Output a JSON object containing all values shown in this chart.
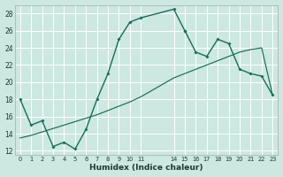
{
  "xlabel": "Humidex (Indice chaleur)",
  "background_color": "#cce8e0",
  "grid_color": "#ffffff",
  "line_color": "#1a6b5a",
  "xlim": [
    -0.5,
    23.5
  ],
  "ylim": [
    11.5,
    29.0
  ],
  "yticks": [
    12,
    14,
    16,
    18,
    20,
    22,
    24,
    26,
    28
  ],
  "xtick_positions": [
    0,
    1,
    2,
    3,
    4,
    5,
    6,
    7,
    8,
    9,
    10,
    11,
    14,
    15,
    16,
    17,
    18,
    19,
    20,
    21,
    22,
    23
  ],
  "xtick_labels": [
    "0",
    "1",
    "2",
    "3",
    "4",
    "5",
    "6",
    "7",
    "8",
    "9",
    "10",
    "11",
    "14",
    "15",
    "16",
    "17",
    "18",
    "19",
    "20",
    "21",
    "22",
    "23"
  ],
  "line1_x": [
    0,
    1,
    2,
    3,
    4,
    5,
    6,
    7,
    8,
    9,
    10,
    11,
    14,
    15
  ],
  "line1_y": [
    18,
    15,
    15.5,
    12.5,
    13,
    12.2,
    14.5,
    18,
    21,
    25,
    27,
    27.5,
    28.5,
    26
  ],
  "line2_x": [
    15,
    16,
    17,
    18,
    19,
    20,
    21,
    22,
    23
  ],
  "line2_y": [
    26,
    23.5,
    23,
    25,
    24.5,
    21.5,
    21.0,
    20.7,
    18.5
  ],
  "line3_x": [
    0,
    1,
    2,
    3,
    4,
    5,
    6,
    7,
    8,
    9,
    10,
    11,
    14,
    15,
    16,
    17,
    18,
    19,
    20,
    21,
    22,
    23
  ],
  "line3_y": [
    13.5,
    13.8,
    14.2,
    14.6,
    15.0,
    15.4,
    15.8,
    16.2,
    16.7,
    17.2,
    17.7,
    18.3,
    20.5,
    21.0,
    21.5,
    22.0,
    22.5,
    23.0,
    23.5,
    23.8,
    24.0,
    18.5
  ]
}
